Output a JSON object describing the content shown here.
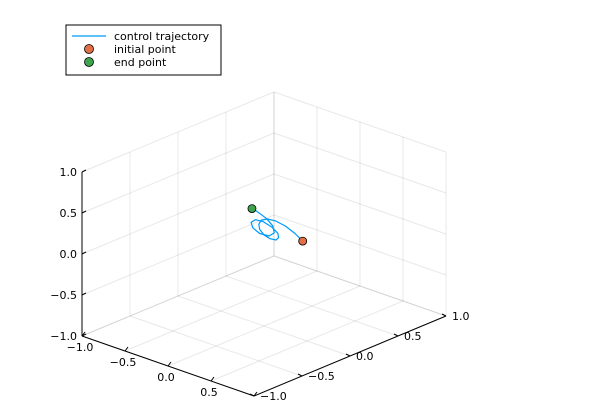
{
  "chart_data": {
    "type": "line3d",
    "title": "",
    "xlabel": "",
    "ylabel": "",
    "zlabel": "",
    "xlim": [
      -1,
      1
    ],
    "ylim": [
      -1,
      1
    ],
    "zlim": [
      -1,
      1
    ],
    "xticks": [
      "−1.0",
      "−0.5",
      "0.0",
      "0.5",
      "1.0"
    ],
    "yticks": [
      "−1.0",
      "−0.5",
      "0.0",
      "0.5",
      "1.0"
    ],
    "zticks": [
      "−1.0",
      "−0.5",
      "0.0",
      "0.5",
      "1.0"
    ],
    "grid": true,
    "legend_position": "top-left",
    "series": [
      {
        "name": "control trajectory",
        "kind": "line",
        "color": "#009AF9",
        "points": [
          [
            0.45,
            0.0,
            0.2
          ],
          [
            0.36,
            0.0,
            0.26
          ],
          [
            0.25,
            0.0,
            0.31
          ],
          [
            0.14,
            0.0,
            0.33
          ],
          [
            0.04,
            0.0,
            0.32
          ],
          [
            -0.03,
            0.0,
            0.28
          ],
          [
            -0.06,
            0.0,
            0.22
          ],
          [
            -0.05,
            0.0,
            0.16
          ],
          [
            0.0,
            0.0,
            0.11
          ],
          [
            0.07,
            0.0,
            0.09
          ],
          [
            0.14,
            0.0,
            0.1
          ],
          [
            0.17,
            0.0,
            0.14
          ],
          [
            0.16,
            0.0,
            0.19
          ],
          [
            0.09,
            0.0,
            0.24
          ],
          [
            -0.01,
            0.0,
            0.27
          ],
          [
            -0.1,
            0.0,
            0.26
          ],
          [
            -0.15,
            0.0,
            0.21
          ],
          [
            -0.13,
            0.0,
            0.15
          ],
          [
            -0.05,
            0.0,
            0.11
          ],
          [
            0.06,
            0.0,
            0.12
          ],
          [
            0.12,
            0.0,
            0.18
          ],
          [
            0.1,
            0.0,
            0.26
          ],
          [
            0.03,
            0.0,
            0.32
          ],
          [
            -0.06,
            0.0,
            0.36
          ],
          [
            -0.12,
            0.0,
            0.38
          ],
          [
            -0.14,
            0.0,
            0.38
          ]
        ]
      },
      {
        "name": "initial point",
        "kind": "scatter",
        "color": "#E26F46",
        "points": [
          [
            0.45,
            0.0,
            0.2
          ]
        ]
      },
      {
        "name": "end point",
        "kind": "scatter",
        "color": "#3DA44D",
        "points": [
          [
            -0.14,
            0.0,
            0.38
          ]
        ]
      }
    ]
  }
}
